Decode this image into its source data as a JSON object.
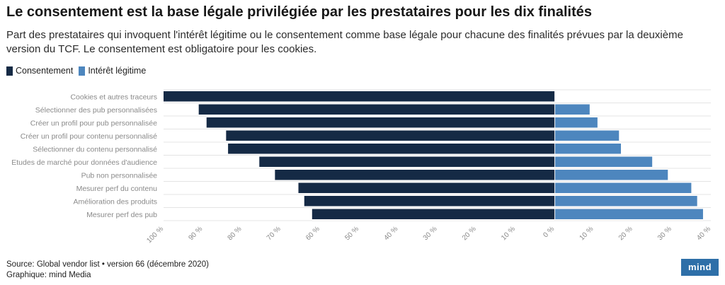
{
  "header": {
    "title": "Le consentement est la base légale privilégiée par les prestataires pour les dix finalités",
    "subtitle": "Part des prestataires qui invoquent l'intérêt légitime ou le consentement comme base légale pour chacune des finalités prévues par la deuxième version du TCF. Le consentement est obligatoire pour les cookies."
  },
  "legend": {
    "items": [
      {
        "label": "Consentement",
        "color": "#152a45"
      },
      {
        "label": "Intérêt légitime",
        "color": "#4d86be"
      }
    ]
  },
  "chart_data": {
    "type": "bar",
    "orientation": "horizontal-diverging",
    "categories": [
      "Cookies et autres traceurs",
      "Sélectionner des pub personnalisées",
      "Créer un profil pour pub personnalisée",
      "Créer un profil pour contenu personnalisé",
      "Sélectionner du contenu personnalisé",
      "Etudes de marché pour données d'audience",
      "Pub non personnalisée",
      "Mesurer perf du contenu",
      "Amélioration des produits",
      "Mesurer perf des pub"
    ],
    "series": [
      {
        "name": "Consentement",
        "color": "#152a45",
        "direction": "left",
        "values": [
          100,
          91,
          89,
          84,
          83.5,
          75.5,
          71.5,
          65.5,
          64,
          62
        ]
      },
      {
        "name": "Intérêt légitime",
        "color": "#4d86be",
        "direction": "right",
        "values": [
          0,
          9,
          11,
          16.5,
          17,
          25,
          29,
          35,
          36.5,
          38
        ]
      }
    ],
    "x_ticks": [
      "100 %",
      "90 %",
      "80 %",
      "70 %",
      "60 %",
      "50 %",
      "40 %",
      "30 %",
      "20 %",
      "10 %",
      "0 %",
      "10 %",
      "20 %",
      "30 %",
      "40 %"
    ],
    "xlim": [
      -100,
      40
    ],
    "grid": true,
    "legend_position": "top-left"
  },
  "footer": {
    "source": "Source: Global vendor list • version 66 (décembre 2020)",
    "credit": "Graphique: mind Media",
    "logo_text": "mind"
  }
}
